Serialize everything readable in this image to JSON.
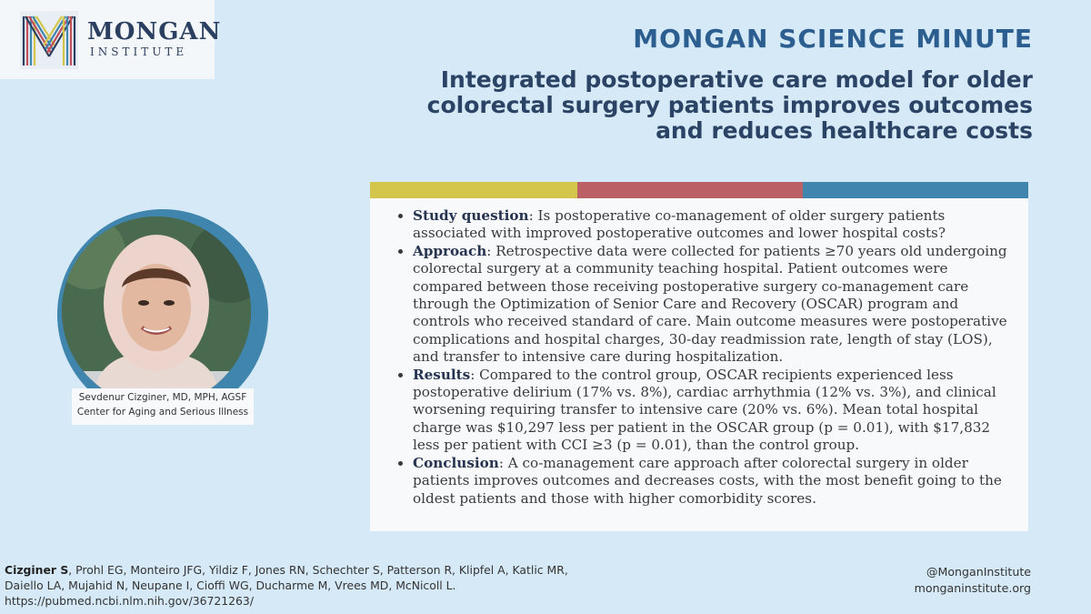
{
  "logo": {
    "name": "MONGAN",
    "sub": "INSTITUTE"
  },
  "brand_title": "MONGAN SCIENCE MINUTE",
  "headline": "Integrated postoperative care model for older colorectal surgery patients improves outcomes and reduces healthcare costs",
  "colors": {
    "yellow": "#d3c64a",
    "red": "#bb6166",
    "blue": "#3f85ad",
    "background": "#d6e9f7"
  },
  "bullets": [
    {
      "label": "Study question",
      "text": ": Is postoperative co-management of older surgery patients associated with improved postoperative outcomes and lower hospital costs?"
    },
    {
      "label": "Approach",
      "text": ": Retrospective data were collected for patients ≥70 years old undergoing colorectal surgery at a community teaching hospital. Patient outcomes were compared between those receiving postoperative surgery co-management care through the Optimization of Senior Care and Recovery (OSCAR) program and controls who received standard of care. Main outcome measures were postoperative complications and hospital charges, 30-day readmission rate, length of stay (LOS), and transfer to intensive care during hospitalization."
    },
    {
      "label": "Results",
      "text": ": Compared to the control group, OSCAR recipients experienced less postoperative delirium (17% vs. 8%), cardiac arrhythmia (12% vs. 3%), and clinical worsening requiring transfer to intensive care (20% vs. 6%). Mean total hospital charge was $10,297 less per patient in the OSCAR group (p = 0.01), with $17,832 less per patient with CCI ≥3 (p = 0.01), than the control group."
    },
    {
      "label": "Conclusion",
      "text": ": A co-management care approach after colorectal surgery in older patients improves outcomes and decreases costs, with the most benefit going to the oldest patients and those with higher comorbidity scores."
    }
  ],
  "caption": {
    "line1": "Sevdenur Cizginer, MD, MPH, AGSF",
    "line2": "Center for Aging and Serious Illness"
  },
  "citation": {
    "lead_author": "Cizginer S",
    "authors": ", Prohl EG, Monteiro JFG, Yildiz F, Jones RN, Schechter S, Patterson R, Klipfel A, Katlic MR, Daiello LA, Mujahid N, Neupane I, Cioffi WG, Ducharme M, Vrees MD, McNicoll L.",
    "url": "https://pubmed.ncbi.nlm.nih.gov/36721263/"
  },
  "social": {
    "handle": "@MonganInstitute",
    "website": "monganinstitute.org"
  }
}
